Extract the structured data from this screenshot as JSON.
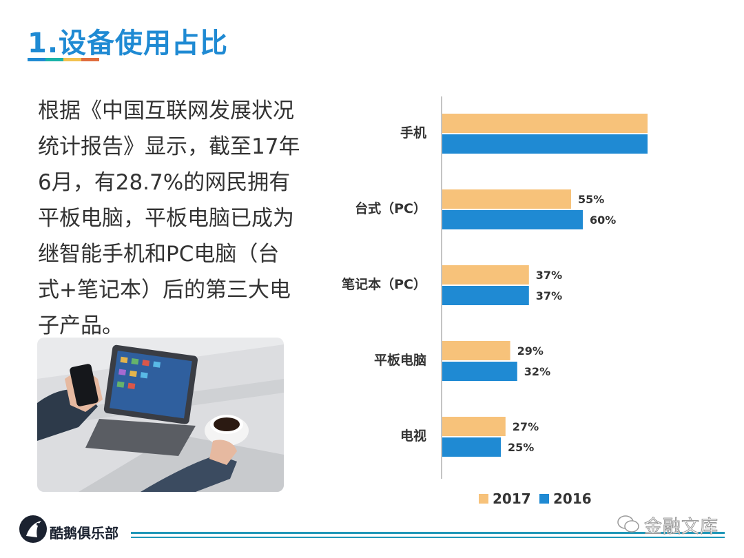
{
  "header": {
    "title": "1.设备使用占比"
  },
  "intro": {
    "lines": [
      "根据《中国互联网发展状况",
      "统计报告》显示，截至17年",
      "6月，有28.7%的网民拥有",
      "平板电脑，平板电脑已成为",
      "继智能手机和PC电脑（台",
      "式+笔记本）后的第三大电",
      "子产品。"
    ]
  },
  "footer": {
    "brand": "酷鹅俱乐部",
    "watermark": "金融文库"
  },
  "colors": {
    "title": "#1f8ad3",
    "series_2017": "#f7c27a",
    "series_2016": "#1f8ad3",
    "title_rule": [
      "#1f8ad3",
      "#19b3a8",
      "#f2c14e",
      "#e06c3d"
    ]
  },
  "chart_data": {
    "type": "bar",
    "orientation": "horizontal",
    "categories": [
      "手机",
      "台式（PC）",
      "笔记本（PC）",
      "平板电脑",
      "电视"
    ],
    "series": [
      {
        "name": "2017",
        "values": [
          96,
          55,
          37,
          29,
          27
        ],
        "labels": [
          "96%",
          "55%",
          "37%",
          "29%",
          "27%"
        ],
        "color": "#f7c27a"
      },
      {
        "name": "2016",
        "values": [
          95,
          60,
          37,
          32,
          25
        ],
        "labels": [
          "95%",
          "60%",
          "37%",
          "32%",
          "25%"
        ],
        "color": "#1f8ad3"
      }
    ],
    "xlim": [
      0,
      100
    ],
    "legend": "bottom",
    "grid": false
  }
}
